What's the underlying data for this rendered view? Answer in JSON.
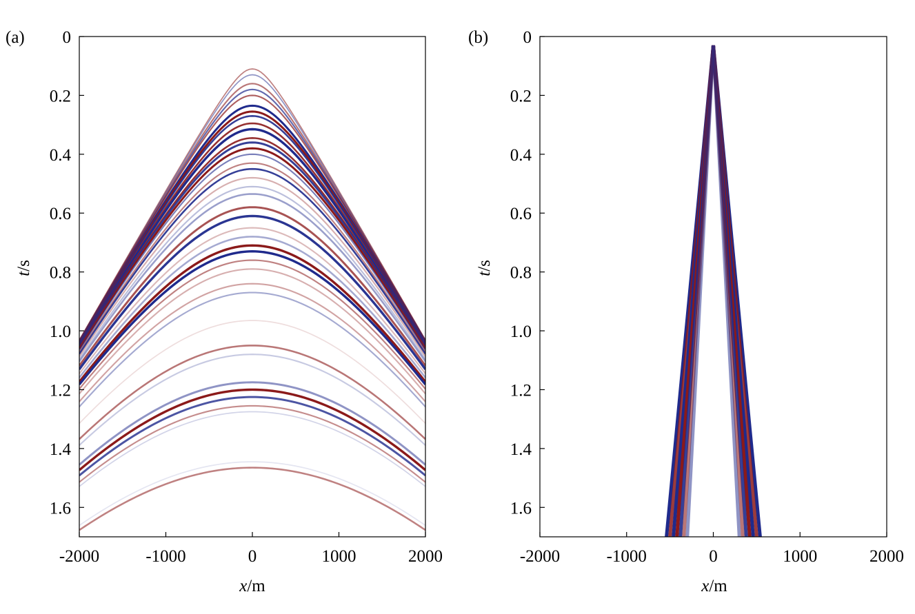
{
  "chart_data": [
    {
      "type": "heatmap",
      "panel_label": "(a)",
      "xlabel_var": "x",
      "xlabel_unit": "/m",
      "ylabel_var": "t",
      "ylabel_unit": "/s",
      "xlim": [
        -2000,
        2000
      ],
      "ylim": [
        0,
        1.7
      ],
      "y_inverted": true,
      "x_ticks": [
        "-2000",
        "-1000",
        "0",
        "1000",
        "2000"
      ],
      "y_ticks": [
        "0",
        "0.2",
        "0.4",
        "0.6",
        "0.8",
        "1.0",
        "1.2",
        "1.4",
        "1.6"
      ],
      "colors": {
        "positive": "#8b1a1a",
        "negative": "#1f2a8c"
      },
      "events": [
        {
          "t0": 0.11,
          "v": 1950,
          "polarity": "red",
          "amp": 0.55,
          "width": 0.004
        },
        {
          "t0": 0.13,
          "v": 1950,
          "polarity": "blue",
          "amp": 0.5,
          "width": 0.004
        },
        {
          "t0": 0.16,
          "v": 1960,
          "polarity": "red",
          "amp": 0.6,
          "width": 0.005
        },
        {
          "t0": 0.18,
          "v": 1960,
          "polarity": "blue",
          "amp": 0.7,
          "width": 0.005
        },
        {
          "t0": 0.2,
          "v": 1970,
          "polarity": "red",
          "amp": 0.7,
          "width": 0.005
        },
        {
          "t0": 0.235,
          "v": 1980,
          "polarity": "blue",
          "amp": 1.0,
          "width": 0.007
        },
        {
          "t0": 0.255,
          "v": 1985,
          "polarity": "red",
          "amp": 1.0,
          "width": 0.007
        },
        {
          "t0": 0.27,
          "v": 1990,
          "polarity": "blue",
          "amp": 0.9,
          "width": 0.006
        },
        {
          "t0": 0.295,
          "v": 1995,
          "polarity": "red",
          "amp": 0.9,
          "width": 0.006
        },
        {
          "t0": 0.315,
          "v": 2000,
          "polarity": "blue",
          "amp": 1.0,
          "width": 0.008
        },
        {
          "t0": 0.345,
          "v": 2010,
          "polarity": "red",
          "amp": 0.9,
          "width": 0.006
        },
        {
          "t0": 0.36,
          "v": 2015,
          "polarity": "blue",
          "amp": 0.9,
          "width": 0.007
        },
        {
          "t0": 0.38,
          "v": 2020,
          "polarity": "red",
          "amp": 1.0,
          "width": 0.007
        },
        {
          "t0": 0.4,
          "v": 2025,
          "polarity": "blue",
          "amp": 0.6,
          "width": 0.005
        },
        {
          "t0": 0.43,
          "v": 2035,
          "polarity": "red",
          "amp": 0.55,
          "width": 0.005
        },
        {
          "t0": 0.45,
          "v": 2040,
          "polarity": "blue",
          "amp": 0.9,
          "width": 0.006
        },
        {
          "t0": 0.48,
          "v": 2050,
          "polarity": "red",
          "amp": 0.35,
          "width": 0.005
        },
        {
          "t0": 0.51,
          "v": 2060,
          "polarity": "blue",
          "amp": 0.3,
          "width": 0.005
        },
        {
          "t0": 0.535,
          "v": 2070,
          "polarity": "blue",
          "amp": 0.45,
          "width": 0.006
        },
        {
          "t0": 0.58,
          "v": 2090,
          "polarity": "red",
          "amp": 0.75,
          "width": 0.007
        },
        {
          "t0": 0.61,
          "v": 2100,
          "polarity": "blue",
          "amp": 0.95,
          "width": 0.008
        },
        {
          "t0": 0.65,
          "v": 2120,
          "polarity": "red",
          "amp": 0.3,
          "width": 0.005
        },
        {
          "t0": 0.68,
          "v": 2130,
          "polarity": "blue",
          "amp": 0.4,
          "width": 0.006
        },
        {
          "t0": 0.71,
          "v": 2140,
          "polarity": "red",
          "amp": 1.0,
          "width": 0.008
        },
        {
          "t0": 0.73,
          "v": 2150,
          "polarity": "blue",
          "amp": 1.0,
          "width": 0.008
        },
        {
          "t0": 0.76,
          "v": 2160,
          "polarity": "red",
          "amp": 0.55,
          "width": 0.005
        },
        {
          "t0": 0.79,
          "v": 2170,
          "polarity": "red",
          "amp": 0.35,
          "width": 0.005
        },
        {
          "t0": 0.84,
          "v": 2190,
          "polarity": "red",
          "amp": 0.4,
          "width": 0.005
        },
        {
          "t0": 0.87,
          "v": 2200,
          "polarity": "blue",
          "amp": 0.4,
          "width": 0.005
        },
        {
          "t0": 0.965,
          "v": 2240,
          "polarity": "red",
          "amp": 0.15,
          "width": 0.004
        },
        {
          "t0": 1.05,
          "v": 2280,
          "polarity": "red",
          "amp": 0.6,
          "width": 0.006
        },
        {
          "t0": 1.08,
          "v": 2290,
          "polarity": "blue",
          "amp": 0.25,
          "width": 0.005
        },
        {
          "t0": 1.175,
          "v": 2330,
          "polarity": "blue",
          "amp": 0.5,
          "width": 0.007
        },
        {
          "t0": 1.2,
          "v": 2340,
          "polarity": "red",
          "amp": 1.0,
          "width": 0.008
        },
        {
          "t0": 1.225,
          "v": 2350,
          "polarity": "blue",
          "amp": 0.8,
          "width": 0.007
        },
        {
          "t0": 1.255,
          "v": 2360,
          "polarity": "red",
          "amp": 0.5,
          "width": 0.005
        },
        {
          "t0": 1.275,
          "v": 2370,
          "polarity": "blue",
          "amp": 0.2,
          "width": 0.004
        },
        {
          "t0": 1.465,
          "v": 2450,
          "polarity": "red",
          "amp": 0.55,
          "width": 0.006
        },
        {
          "t0": 1.445,
          "v": 2440,
          "polarity": "blue",
          "amp": 0.12,
          "width": 0.004
        }
      ]
    },
    {
      "type": "heatmap",
      "panel_label": "(b)",
      "xlabel_var": "x",
      "xlabel_unit": "/m",
      "ylabel_var": "t",
      "ylabel_unit": "/s",
      "xlim": [
        -2000,
        2000
      ],
      "ylim": [
        0,
        1.7
      ],
      "y_inverted": true,
      "x_ticks": [
        "-2000",
        "-1000",
        "0",
        "1000",
        "2000"
      ],
      "y_ticks": [
        "0",
        "0.2",
        "0.4",
        "0.6",
        "0.8",
        "1.0",
        "1.2",
        "1.4",
        "1.6"
      ],
      "colors": {
        "positive": "#8b1a1a",
        "negative": "#1f2a8c"
      },
      "apex_t": 0.03,
      "bottom_t": 1.7,
      "wedges": [
        {
          "half_width_x": 540,
          "polarity": "blue",
          "amp": 1.0
        },
        {
          "half_width_x": 500,
          "polarity": "red",
          "amp": 0.85
        },
        {
          "half_width_x": 460,
          "polarity": "blue",
          "amp": 1.0
        },
        {
          "half_width_x": 420,
          "polarity": "red",
          "amp": 1.0
        },
        {
          "half_width_x": 380,
          "polarity": "blue",
          "amp": 0.9
        },
        {
          "half_width_x": 340,
          "polarity": "red",
          "amp": 0.6
        },
        {
          "half_width_x": 300,
          "polarity": "blue",
          "amp": 0.5
        }
      ]
    }
  ]
}
